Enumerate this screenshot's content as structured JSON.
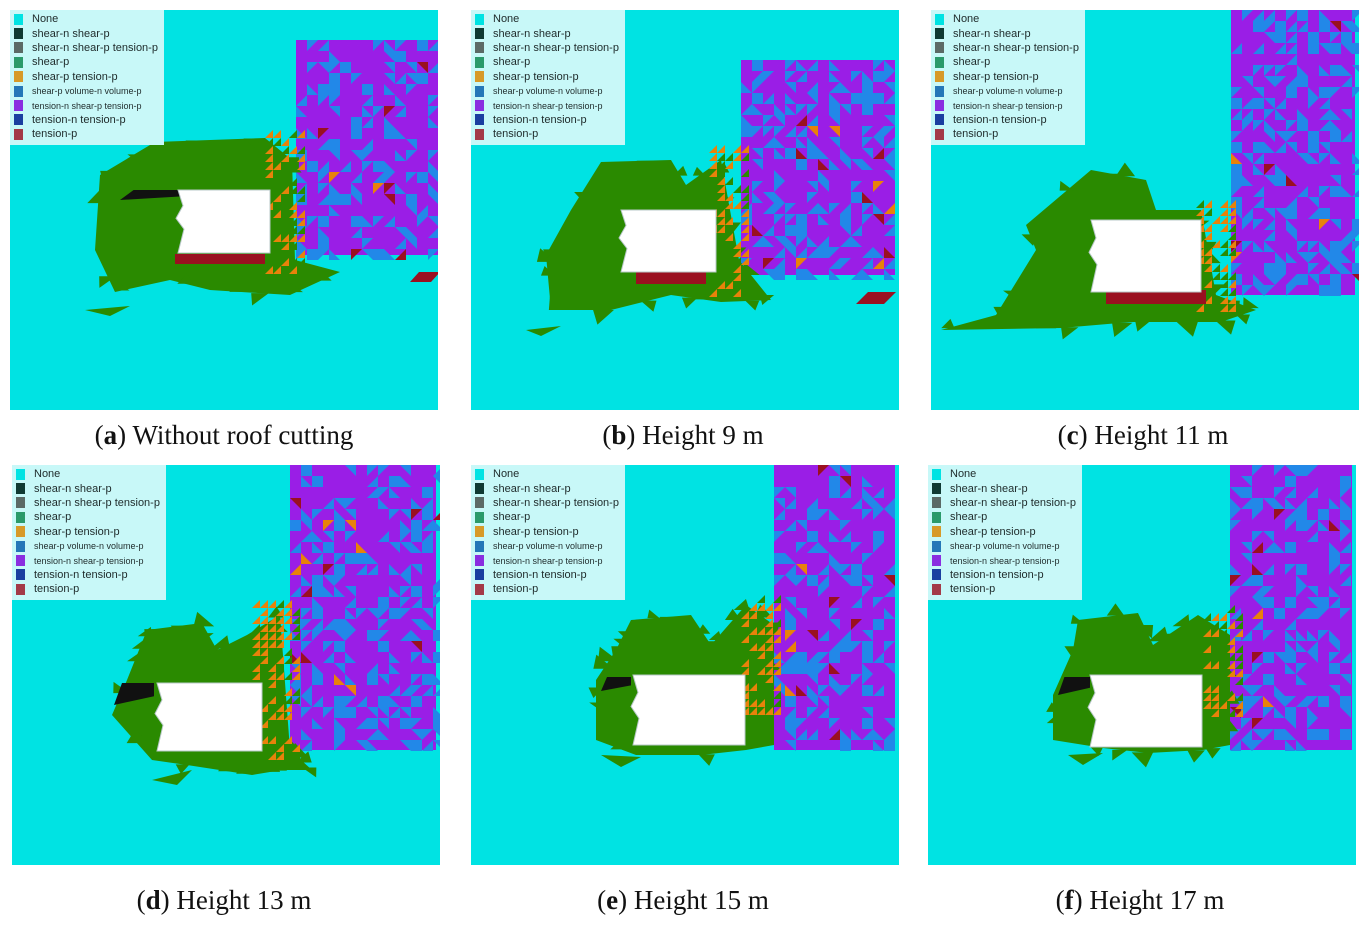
{
  "colors": {
    "background": "#00e3e3",
    "legend_bg": "#c8f8f8",
    "green": "#2a8a00",
    "purple": "#9a1ee6",
    "blue": "#2288e8",
    "orange": "#e8820a",
    "darkred": "#9a1020",
    "navy": "#102070",
    "black": "#111111",
    "opening": "#ffffff"
  },
  "legend": {
    "items": [
      {
        "label": "None",
        "color": "#00e3e3",
        "small": false
      },
      {
        "label": "shear-n shear-p",
        "color": "#0f3a33",
        "small": false
      },
      {
        "label": "shear-n shear-p tension-p",
        "color": "#5b6a66",
        "small": false
      },
      {
        "label": "shear-p",
        "color": "#2a9a6a",
        "small": false
      },
      {
        "label": "shear-p tension-p",
        "color": "#d79a28",
        "small": false
      },
      {
        "label": "shear-p volume-n volume-p",
        "color": "#2477b8",
        "small": true
      },
      {
        "label": "tension-n shear-p tension-p",
        "color": "#8a2ee0",
        "small": true
      },
      {
        "label": "tension-n tension-p",
        "color": "#1a3fa0",
        "small": false
      },
      {
        "label": "tension-p",
        "color": "#a33a48",
        "small": false
      }
    ]
  },
  "panels": [
    {
      "letter": "a",
      "label": "Without roof cutting"
    },
    {
      "letter": "b",
      "label": "Height 9 m"
    },
    {
      "letter": "c",
      "label": "Height 11 m"
    },
    {
      "letter": "d",
      "label": "Height 13 m"
    },
    {
      "letter": "e",
      "label": "Height 15 m"
    },
    {
      "letter": "f",
      "label": "Height 17 m"
    }
  ]
}
